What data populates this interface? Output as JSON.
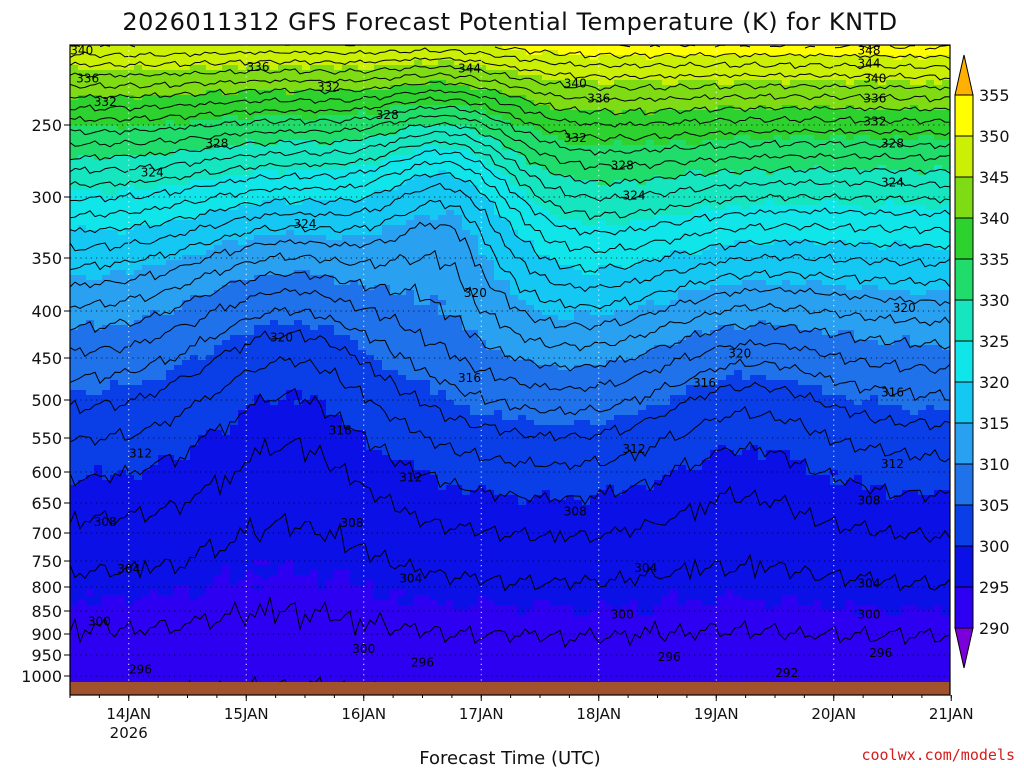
{
  "chart_data": {
    "type": "heatmap",
    "subtype": "filled-contour",
    "title": "2026011312 GFS Forecast Potential Temperature (K) for KNTD",
    "xlabel": "Forecast Time (UTC)",
    "ylabel": "",
    "credit": "coolwx.com/models",
    "y_axis": {
      "scale": "pressure (log-like, decreasing upward)",
      "ylim": [
        1000,
        200
      ],
      "ticks": [
        1000,
        950,
        900,
        850,
        800,
        750,
        700,
        650,
        600,
        550,
        500,
        450,
        400,
        350,
        300,
        250
      ]
    },
    "x_axis": {
      "ticks": [
        "14JAN",
        "15JAN",
        "16JAN",
        "17JAN",
        "18JAN",
        "19JAN",
        "20JAN",
        "21JAN"
      ],
      "tick_sublabels": [
        "2026",
        "",
        "",
        "",
        "",
        "",
        "",
        ""
      ],
      "range": [
        "13JAN 12Z",
        "21JAN 00Z"
      ]
    },
    "grid": true,
    "colorbar": {
      "units": "K",
      "levels": [
        290,
        295,
        300,
        305,
        310,
        315,
        320,
        325,
        330,
        335,
        340,
        345,
        350,
        355
      ],
      "colors": [
        "#7b00d9",
        "#2e00f2",
        "#0b10e6",
        "#0a3fe8",
        "#1f72ea",
        "#2aa0f0",
        "#15c8f4",
        "#10e6ea",
        "#16e6c0",
        "#20dc6a",
        "#2ed22e",
        "#7fdc14",
        "#ccef06",
        "#ffff00",
        "#ffb000"
      ],
      "extends": "both"
    },
    "contour_interval_K": 2,
    "contour_labels": [
      {
        "day": 13.6,
        "p": 205,
        "v": 340
      },
      {
        "day": 15.1,
        "p": 215,
        "v": 336
      },
      {
        "day": 13.65,
        "p": 222,
        "v": 336
      },
      {
        "day": 13.8,
        "p": 236,
        "v": 332
      },
      {
        "day": 15.7,
        "p": 227,
        "v": 332
      },
      {
        "day": 14.75,
        "p": 263,
        "v": 328
      },
      {
        "day": 16.2,
        "p": 244,
        "v": 328
      },
      {
        "day": 14.2,
        "p": 283,
        "v": 324
      },
      {
        "day": 15.5,
        "p": 322,
        "v": 324
      },
      {
        "day": 16.9,
        "p": 216,
        "v": 344
      },
      {
        "day": 17.8,
        "p": 225,
        "v": 340
      },
      {
        "day": 18.0,
        "p": 234,
        "v": 336
      },
      {
        "day": 17.8,
        "p": 259,
        "v": 332
      },
      {
        "day": 18.2,
        "p": 278,
        "v": 328
      },
      {
        "day": 18.3,
        "p": 299,
        "v": 324
      },
      {
        "day": 20.3,
        "p": 205,
        "v": 348
      },
      {
        "day": 20.3,
        "p": 213,
        "v": 344
      },
      {
        "day": 20.35,
        "p": 222,
        "v": 340
      },
      {
        "day": 20.35,
        "p": 234,
        "v": 336
      },
      {
        "day": 20.35,
        "p": 248,
        "v": 332
      },
      {
        "day": 20.5,
        "p": 263,
        "v": 328
      },
      {
        "day": 20.5,
        "p": 290,
        "v": 324
      },
      {
        "day": 16.95,
        "p": 383,
        "v": 320
      },
      {
        "day": 15.3,
        "p": 428,
        "v": 320
      },
      {
        "day": 19.2,
        "p": 445,
        "v": 320
      },
      {
        "day": 20.6,
        "p": 397,
        "v": 320
      },
      {
        "day": 16.9,
        "p": 474,
        "v": 316
      },
      {
        "day": 18.9,
        "p": 480,
        "v": 316
      },
      {
        "day": 15.8,
        "p": 540,
        "v": 316
      },
      {
        "day": 20.5,
        "p": 491,
        "v": 316
      },
      {
        "day": 14.1,
        "p": 573,
        "v": 312
      },
      {
        "day": 16.4,
        "p": 609,
        "v": 312
      },
      {
        "day": 18.3,
        "p": 566,
        "v": 312
      },
      {
        "day": 20.5,
        "p": 588,
        "v": 312
      },
      {
        "day": 13.8,
        "p": 682,
        "v": 308
      },
      {
        "day": 15.9,
        "p": 683,
        "v": 308
      },
      {
        "day": 17.8,
        "p": 664,
        "v": 308
      },
      {
        "day": 20.3,
        "p": 646,
        "v": 308
      },
      {
        "day": 14.0,
        "p": 765,
        "v": 304
      },
      {
        "day": 16.4,
        "p": 784,
        "v": 304
      },
      {
        "day": 18.4,
        "p": 763,
        "v": 304
      },
      {
        "day": 20.3,
        "p": 793,
        "v": 304
      },
      {
        "day": 13.75,
        "p": 873,
        "v": 300
      },
      {
        "day": 16.0,
        "p": 936,
        "v": 300
      },
      {
        "day": 18.2,
        "p": 858,
        "v": 300
      },
      {
        "day": 20.3,
        "p": 858,
        "v": 300
      },
      {
        "day": 14.1,
        "p": 985,
        "v": 296
      },
      {
        "day": 16.5,
        "p": 968,
        "v": 296
      },
      {
        "day": 18.6,
        "p": 955,
        "v": 296
      },
      {
        "day": 20.4,
        "p": 945,
        "v": 296
      },
      {
        "day": 19.6,
        "p": 993,
        "v": 292
      }
    ],
    "surface_terrain_color": "#a0522d"
  }
}
